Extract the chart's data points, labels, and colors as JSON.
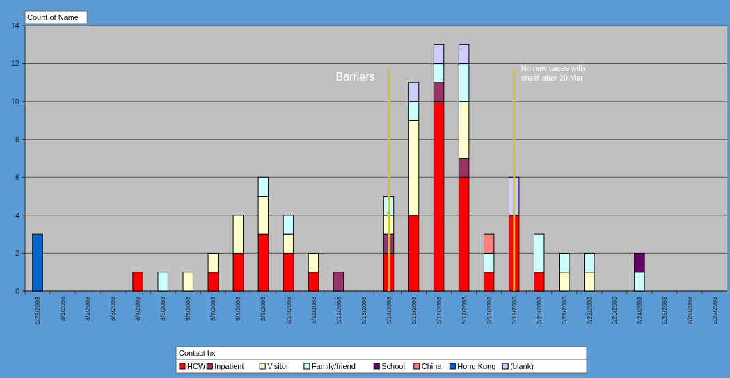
{
  "chart_data": {
    "type": "bar",
    "stacked": true,
    "categories": [
      "2/28/2003",
      "3/1/2003",
      "3/2/2003",
      "3/3/2003",
      "3/4/2003",
      "3/5/2003",
      "3/6/2003",
      "3/7/2003",
      "3/8/2003",
      "3/9/2003",
      "3/10/2003",
      "3/11/2003",
      "3/12/2003",
      "3/13/2003",
      "3/14/2003",
      "3/15/2003",
      "3/16/2003",
      "3/17/2003",
      "3/18/2003",
      "3/19/2003",
      "3/20/2003",
      "3/21/2003",
      "3/22/2003",
      "3/23/2003",
      "3/24/2003",
      "3/25/2003",
      "3/26/2003",
      "3/27/2003"
    ],
    "series": [
      {
        "name": "HCW",
        "color": "#ff0000",
        "values": [
          0,
          0,
          0,
          0,
          1,
          0,
          0,
          1,
          2,
          3,
          2,
          1,
          0,
          0,
          2,
          4,
          10,
          6,
          1,
          4,
          1,
          0,
          0,
          0,
          0,
          0,
          0,
          0
        ]
      },
      {
        "name": "Inpatient",
        "color": "#993366",
        "values": [
          0,
          0,
          0,
          0,
          0,
          0,
          0,
          0,
          0,
          0,
          0,
          0,
          1,
          0,
          1,
          0,
          1,
          1,
          0,
          0,
          0,
          0,
          0,
          0,
          0,
          0,
          0,
          0
        ]
      },
      {
        "name": "Visitor",
        "color": "#ffffcc",
        "values": [
          0,
          0,
          0,
          0,
          0,
          0,
          1,
          1,
          2,
          2,
          1,
          1,
          0,
          0,
          1,
          5,
          0,
          3,
          0,
          0,
          0,
          1,
          1,
          0,
          0,
          0,
          0,
          0
        ]
      },
      {
        "name": "Family/friend",
        "color": "#ccffff",
        "values": [
          0,
          0,
          0,
          0,
          0,
          1,
          0,
          0,
          0,
          1,
          1,
          0,
          0,
          0,
          1,
          1,
          1,
          2,
          1,
          0,
          2,
          1,
          1,
          0,
          1,
          0,
          0,
          0
        ]
      },
      {
        "name": "School",
        "color": "#660066",
        "values": [
          0,
          0,
          0,
          0,
          0,
          0,
          0,
          0,
          0,
          0,
          0,
          0,
          0,
          0,
          0,
          0,
          0,
          0,
          0,
          0,
          0,
          0,
          0,
          0,
          1,
          0,
          0,
          0
        ]
      },
      {
        "name": "China",
        "color": "#ff8080",
        "values": [
          0,
          0,
          0,
          0,
          0,
          0,
          0,
          0,
          0,
          0,
          0,
          0,
          0,
          0,
          0,
          0,
          0,
          0,
          1,
          0,
          0,
          0,
          0,
          0,
          0,
          0,
          0,
          0
        ]
      },
      {
        "name": "Hong Kong",
        "color": "#0066cc",
        "values": [
          3,
          0,
          0,
          0,
          0,
          0,
          0,
          0,
          0,
          0,
          0,
          0,
          0,
          0,
          0,
          0,
          0,
          0,
          0,
          0,
          0,
          0,
          0,
          0,
          0,
          0,
          0,
          0
        ]
      },
      {
        "name": "(blank)",
        "color": "#ccccff",
        "values": [
          0,
          0,
          0,
          0,
          0,
          0,
          0,
          0,
          0,
          0,
          0,
          0,
          0,
          0,
          0,
          1,
          1,
          1,
          0,
          2,
          0,
          0,
          0,
          0,
          0,
          0,
          0,
          0
        ]
      }
    ],
    "ylim": [
      0,
      14
    ],
    "yticks": [
      0,
      2,
      4,
      6,
      8,
      10,
      12,
      14
    ],
    "grid": "y",
    "legend": "bottom",
    "legend_title": "Contact hx",
    "annotations": [
      "Count of Name"
    ],
    "ref_lines": [
      {
        "axis": "x",
        "value": "3/14/2003",
        "label": "Barriers",
        "color": "#cccc00"
      },
      {
        "axis": "x",
        "value": "3/19/2003",
        "label": "No new cases with onset after 20 Mar",
        "color": "#cccc00"
      }
    ]
  }
}
